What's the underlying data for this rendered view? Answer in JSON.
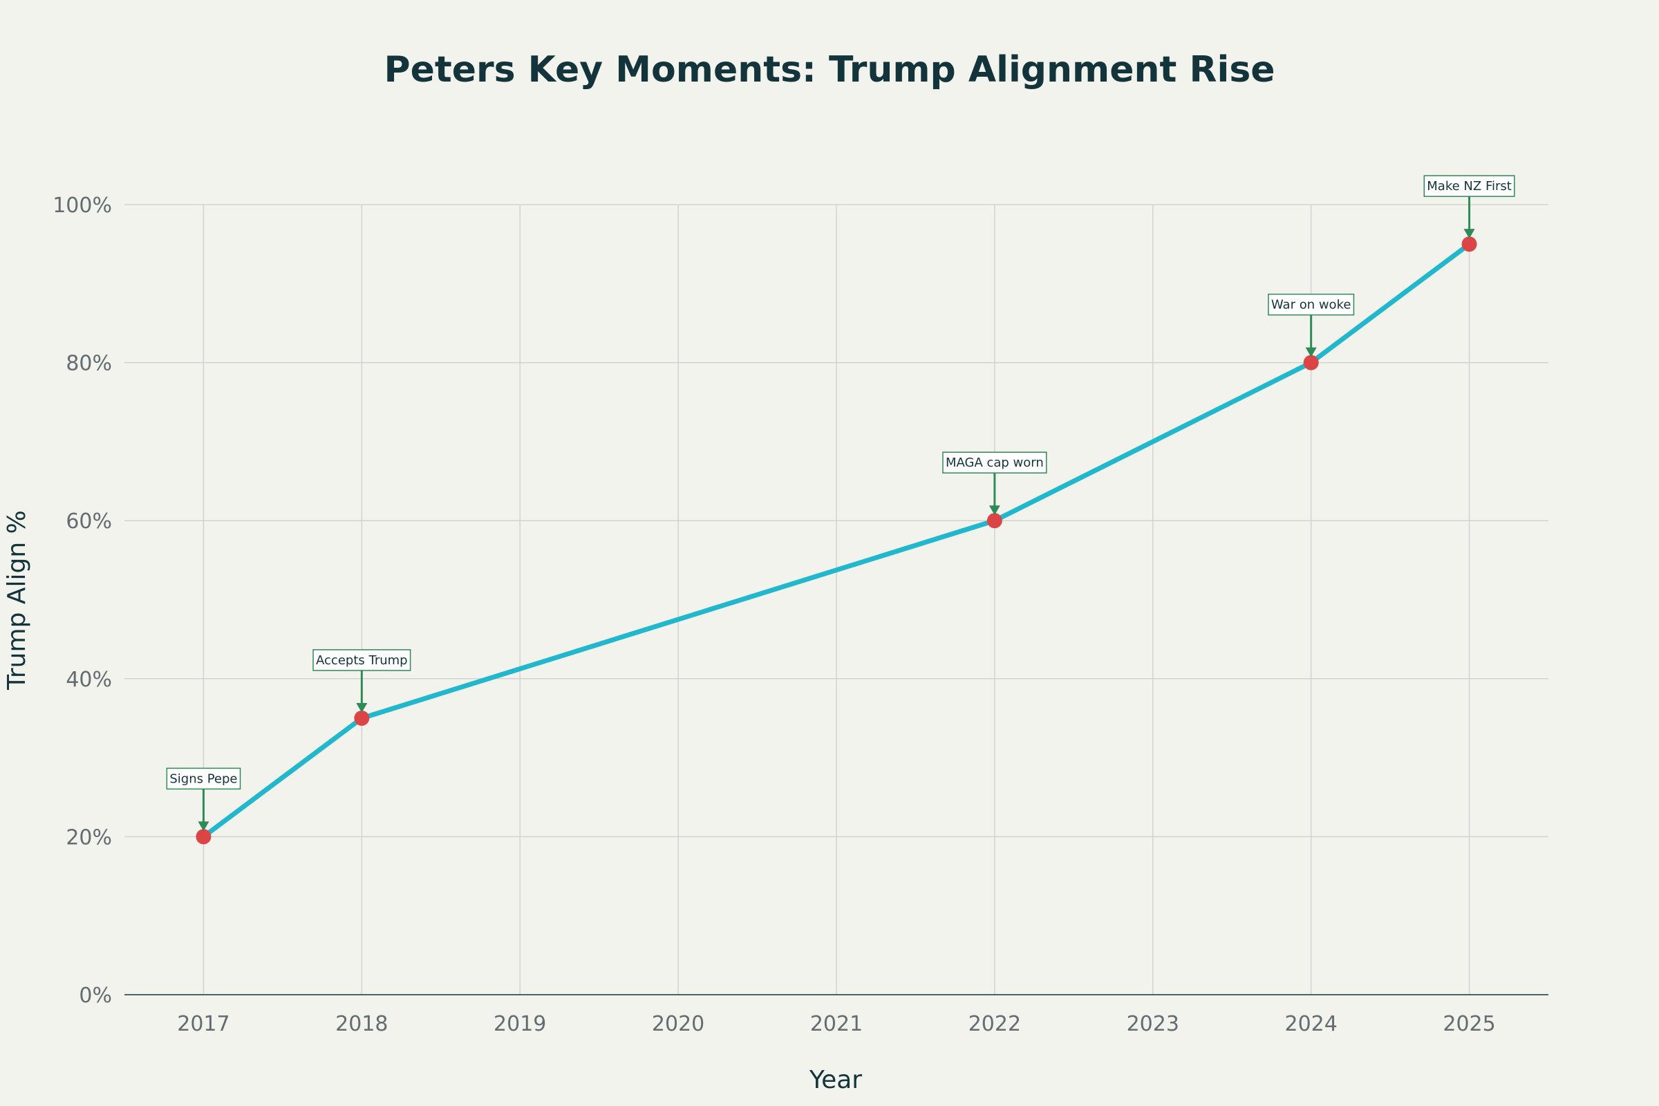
{
  "colors": {
    "background": "#f3f3ee",
    "line": "#21b8cd",
    "marker": "#db4545",
    "arrow": "#2e8a57",
    "annotation_border": "#2e8a57",
    "annotation_bg": "#ffffff",
    "grid": "#d2d3cf",
    "axis": "#13343b",
    "tick_text": "#626c71",
    "title_text": "#13343b"
  },
  "chart_data": {
    "type": "line",
    "title": "Peters Key Moments: Trump Alignment Rise",
    "xlabel": "Year",
    "ylabel": "Trump Align %",
    "x": [
      2017,
      2018,
      2022,
      2024,
      2025
    ],
    "y": [
      20,
      35,
      60,
      80,
      95
    ],
    "annotations": [
      "Signs Pepe",
      "Accepts Trump",
      "MAGA cap worn",
      "War on woke",
      "Make NZ First"
    ],
    "xlim": [
      2016.5,
      2025.5
    ],
    "ylim": [
      0,
      100
    ],
    "x_ticks": [
      2017,
      2018,
      2019,
      2020,
      2021,
      2022,
      2023,
      2024,
      2025
    ],
    "x_tick_labels": [
      "2017",
      "2018",
      "2019",
      "2020",
      "2021",
      "2022",
      "2023",
      "2024",
      "2025"
    ],
    "y_ticks": [
      0,
      20,
      40,
      60,
      80,
      100
    ],
    "y_tick_labels": [
      "0%",
      "20%",
      "40%",
      "60%",
      "80%",
      "100%"
    ],
    "grid": true,
    "legend": "none"
  }
}
